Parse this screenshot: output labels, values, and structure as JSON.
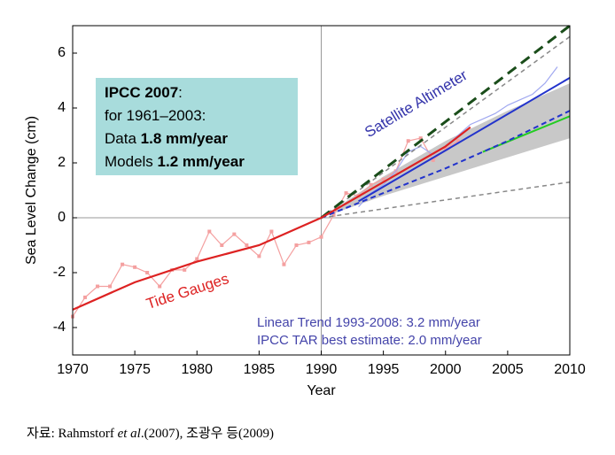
{
  "chart_data": {
    "type": "line",
    "x_label": "Year",
    "y_label": "Sea Level Change (cm)",
    "xlim": [
      1970,
      2010
    ],
    "ylim": [
      -5,
      7
    ],
    "xticks": [
      1970,
      1975,
      1980,
      1985,
      1990,
      1995,
      2000,
      2005,
      2010
    ],
    "yticks": [
      -4,
      -2,
      0,
      2,
      4,
      6
    ],
    "hline": 0,
    "vline": 1990,
    "band": {
      "color": "#c8c8c8",
      "x": [
        1990,
        1995,
        2000,
        2005,
        2010
      ],
      "lower": [
        0,
        0.8,
        1.5,
        2.2,
        2.9
      ],
      "upper": [
        0,
        1.5,
        2.8,
        3.9,
        4.9
      ]
    },
    "series": [
      {
        "color": "#f4a0a0",
        "width": 1.2,
        "markers": true,
        "x": [
          1970,
          1971,
          1972,
          1973,
          1974,
          1975,
          1976,
          1977,
          1978,
          1979,
          1980,
          1981,
          1982,
          1983,
          1984,
          1985,
          1986,
          1987,
          1988,
          1989,
          1990,
          1991,
          1992,
          1993,
          1994,
          1995,
          1996,
          1997,
          1998,
          1999,
          2000,
          2001
        ],
        "values": [
          -3.6,
          -2.9,
          -2.5,
          -2.5,
          -1.7,
          -1.8,
          -2.0,
          -2.5,
          -1.9,
          -1.9,
          -1.5,
          -0.5,
          -1.0,
          -0.6,
          -1.0,
          -1.4,
          -0.5,
          -1.7,
          -1.0,
          -0.9,
          -0.7,
          0.1,
          0.9,
          0.8,
          1.2,
          1.4,
          1.7,
          2.8,
          2.9,
          2.1,
          2.5,
          2.8
        ]
      },
      {
        "color": "#a0a8f0",
        "width": 1.2,
        "x": [
          1993,
          1994,
          1995,
          1996,
          1997,
          1998,
          1999,
          2000,
          2001,
          2002,
          2003,
          2004,
          2005,
          2006,
          2007,
          2008,
          2009
        ],
        "values": [
          0.4,
          0.9,
          1.2,
          1.7,
          2.4,
          2.6,
          2.3,
          2.6,
          3.0,
          3.4,
          3.6,
          3.8,
          4.1,
          4.3,
          4.5,
          4.9,
          5.5
        ]
      },
      {
        "color": "#888888",
        "width": 1.5,
        "dash": "5,4",
        "x": [
          1990,
          2010
        ],
        "values": [
          0,
          6.6
        ]
      },
      {
        "color": "#888888",
        "width": 1.5,
        "dash": "5,4",
        "x": [
          1990,
          2010
        ],
        "values": [
          0,
          1.3
        ]
      },
      {
        "color": "#1a4d1a",
        "width": 3,
        "dash": "12,7",
        "x": [
          1990,
          2010
        ],
        "values": [
          0,
          7.0
        ]
      },
      {
        "color": "#2233cc",
        "width": 2,
        "x": [
          1993,
          2010
        ],
        "values": [
          0.6,
          5.1
        ]
      },
      {
        "color": "#22cc22",
        "width": 2,
        "x": [
          2003,
          2010
        ],
        "values": [
          2.4,
          3.7
        ]
      },
      {
        "color": "#2233cc",
        "width": 2,
        "dash": "6,4",
        "x": [
          1990,
          1995,
          2000,
          2005,
          2010
        ],
        "values": [
          0,
          0.9,
          1.8,
          2.8,
          3.9
        ]
      },
      {
        "color": "#dd2222",
        "width": 2.2,
        "x": [
          1970,
          1975,
          1980,
          1985,
          1990,
          1995,
          2000,
          2002
        ],
        "values": [
          -3.35,
          -2.35,
          -1.6,
          -1.0,
          0,
          1.3,
          2.6,
          3.3
        ]
      }
    ],
    "annotations": {
      "box_color": "#a8dcdc",
      "box_lines": [
        [
          {
            "text": "IPCC 2007",
            "bold": true
          },
          {
            "text": ":"
          }
        ],
        [
          {
            "text": "for 1961–2003:"
          }
        ],
        [
          {
            "text": "Data "
          },
          {
            "text": "1.8 mm/year",
            "bold": true
          }
        ],
        [
          {
            "text": "Models "
          },
          {
            "text": "1.2 mm/year",
            "bold": true
          }
        ]
      ],
      "satellite": "Satellite Altimeter",
      "tide": "Tide Gauges",
      "trend": "Linear Trend 1993-2008: 3.2 mm/year",
      "tar": "IPCC TAR best estimate: 2.0 mm/year"
    }
  },
  "caption": [
    {
      "text": "자료: Rahmstorf "
    },
    {
      "text": "et al",
      "italic": true
    },
    {
      "text": ".(2007), 조광우 등(2009)"
    }
  ]
}
